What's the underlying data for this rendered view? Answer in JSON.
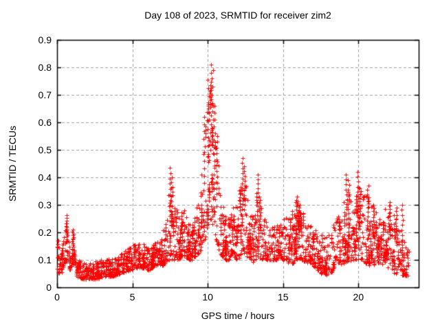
{
  "chart_data": {
    "type": "scatter",
    "title": "Day 108 of 2023, SRMTID for receiver zim2",
    "xlabel": "GPS time / hours",
    "ylabel": "SRMTID / TECUs",
    "xlim": [
      0,
      24
    ],
    "ylim": [
      0,
      0.9
    ],
    "xticks": [
      0,
      5,
      10,
      15,
      20
    ],
    "yticks": [
      0,
      0.1,
      0.2,
      0.3,
      0.4,
      0.5,
      0.6,
      0.7,
      0.8,
      0.9
    ],
    "grid": true,
    "grid_color": "#9e9e9e",
    "grid_dash": [
      4,
      3
    ],
    "border_color": "#000000",
    "marker": "plus",
    "marker_color": "#ff0000",
    "marker_size": 7,
    "x_data_start": 0.0,
    "x_data_end": 23.35,
    "n_epochs": 900,
    "seed": 2023108,
    "envelope": [
      {
        "x": 0.0,
        "lo": 0.05,
        "hi": 0.2
      },
      {
        "x": 0.3,
        "lo": 0.05,
        "hi": 0.13
      },
      {
        "x": 0.6,
        "lo": 0.1,
        "hi": 0.24
      },
      {
        "x": 0.85,
        "lo": 0.06,
        "hi": 0.14
      },
      {
        "x": 1.05,
        "lo": 0.09,
        "hi": 0.19
      },
      {
        "x": 1.3,
        "lo": 0.04,
        "hi": 0.11
      },
      {
        "x": 1.7,
        "lo": 0.03,
        "hi": 0.09
      },
      {
        "x": 2.2,
        "lo": 0.03,
        "hi": 0.09
      },
      {
        "x": 2.7,
        "lo": 0.03,
        "hi": 0.1
      },
      {
        "x": 3.2,
        "lo": 0.04,
        "hi": 0.1
      },
      {
        "x": 3.7,
        "lo": 0.04,
        "hi": 0.11
      },
      {
        "x": 4.2,
        "lo": 0.05,
        "hi": 0.12
      },
      {
        "x": 4.7,
        "lo": 0.06,
        "hi": 0.14
      },
      {
        "x": 5.2,
        "lo": 0.07,
        "hi": 0.16
      },
      {
        "x": 5.7,
        "lo": 0.07,
        "hi": 0.16
      },
      {
        "x": 6.1,
        "lo": 0.06,
        "hi": 0.14
      },
      {
        "x": 6.5,
        "lo": 0.08,
        "hi": 0.17
      },
      {
        "x": 7.0,
        "lo": 0.08,
        "hi": 0.2
      },
      {
        "x": 7.5,
        "lo": 0.1,
        "hi": 0.38
      },
      {
        "x": 7.8,
        "lo": 0.1,
        "hi": 0.3
      },
      {
        "x": 8.1,
        "lo": 0.1,
        "hi": 0.26
      },
      {
        "x": 8.4,
        "lo": 0.12,
        "hi": 0.29
      },
      {
        "x": 8.7,
        "lo": 0.1,
        "hi": 0.23
      },
      {
        "x": 9.0,
        "lo": 0.1,
        "hi": 0.25
      },
      {
        "x": 9.3,
        "lo": 0.12,
        "hi": 0.31
      },
      {
        "x": 9.6,
        "lo": 0.14,
        "hi": 0.45
      },
      {
        "x": 9.85,
        "lo": 0.18,
        "hi": 0.6
      },
      {
        "x": 10.1,
        "lo": 0.22,
        "hi": 0.72
      },
      {
        "x": 10.25,
        "lo": 0.25,
        "hi": 0.78
      },
      {
        "x": 10.45,
        "lo": 0.2,
        "hi": 0.62
      },
      {
        "x": 10.65,
        "lo": 0.15,
        "hi": 0.48
      },
      {
        "x": 10.85,
        "lo": 0.12,
        "hi": 0.34
      },
      {
        "x": 11.1,
        "lo": 0.1,
        "hi": 0.27
      },
      {
        "x": 11.4,
        "lo": 0.1,
        "hi": 0.25
      },
      {
        "x": 11.7,
        "lo": 0.11,
        "hi": 0.29
      },
      {
        "x": 12.0,
        "lo": 0.1,
        "hi": 0.31
      },
      {
        "x": 12.3,
        "lo": 0.13,
        "hi": 0.44
      },
      {
        "x": 12.5,
        "lo": 0.12,
        "hi": 0.4
      },
      {
        "x": 12.75,
        "lo": 0.09,
        "hi": 0.28
      },
      {
        "x": 13.0,
        "lo": 0.09,
        "hi": 0.26
      },
      {
        "x": 13.3,
        "lo": 0.11,
        "hi": 0.38
      },
      {
        "x": 13.6,
        "lo": 0.1,
        "hi": 0.28
      },
      {
        "x": 13.9,
        "lo": 0.1,
        "hi": 0.24
      },
      {
        "x": 14.3,
        "lo": 0.1,
        "hi": 0.22
      },
      {
        "x": 14.7,
        "lo": 0.1,
        "hi": 0.23
      },
      {
        "x": 15.1,
        "lo": 0.1,
        "hi": 0.25
      },
      {
        "x": 15.5,
        "lo": 0.08,
        "hi": 0.27
      },
      {
        "x": 15.9,
        "lo": 0.1,
        "hi": 0.32
      },
      {
        "x": 16.2,
        "lo": 0.1,
        "hi": 0.29
      },
      {
        "x": 16.6,
        "lo": 0.09,
        "hi": 0.24
      },
      {
        "x": 17.0,
        "lo": 0.08,
        "hi": 0.22
      },
      {
        "x": 17.5,
        "lo": 0.05,
        "hi": 0.19
      },
      {
        "x": 18.0,
        "lo": 0.04,
        "hi": 0.19
      },
      {
        "x": 18.4,
        "lo": 0.07,
        "hi": 0.24
      },
      {
        "x": 18.8,
        "lo": 0.08,
        "hi": 0.27
      },
      {
        "x": 19.2,
        "lo": 0.09,
        "hi": 0.37
      },
      {
        "x": 19.6,
        "lo": 0.1,
        "hi": 0.29
      },
      {
        "x": 19.95,
        "lo": 0.1,
        "hi": 0.38
      },
      {
        "x": 20.25,
        "lo": 0.1,
        "hi": 0.33
      },
      {
        "x": 20.6,
        "lo": 0.08,
        "hi": 0.34
      },
      {
        "x": 21.0,
        "lo": 0.08,
        "hi": 0.29
      },
      {
        "x": 21.4,
        "lo": 0.09,
        "hi": 0.27
      },
      {
        "x": 21.8,
        "lo": 0.08,
        "hi": 0.29
      },
      {
        "x": 22.1,
        "lo": 0.06,
        "hi": 0.3
      },
      {
        "x": 22.45,
        "lo": 0.05,
        "hi": 0.27
      },
      {
        "x": 22.75,
        "lo": 0.05,
        "hi": 0.21
      },
      {
        "x": 23.05,
        "lo": 0.04,
        "hi": 0.17
      },
      {
        "x": 23.35,
        "lo": 0.04,
        "hi": 0.13
      }
    ],
    "peaks": [
      {
        "x": 0.62,
        "y": 0.263
      },
      {
        "x": 1.05,
        "y": 0.21
      },
      {
        "x": 7.5,
        "y": 0.435
      },
      {
        "x": 7.62,
        "y": 0.4
      },
      {
        "x": 9.75,
        "y": 0.62
      },
      {
        "x": 10.05,
        "y": 0.755
      },
      {
        "x": 10.2,
        "y": 0.81
      },
      {
        "x": 10.3,
        "y": 0.79
      },
      {
        "x": 10.45,
        "y": 0.66
      },
      {
        "x": 10.6,
        "y": 0.55
      },
      {
        "x": 12.3,
        "y": 0.47
      },
      {
        "x": 12.45,
        "y": 0.44
      },
      {
        "x": 13.3,
        "y": 0.41
      },
      {
        "x": 13.45,
        "y": 0.33
      },
      {
        "x": 15.9,
        "y": 0.33
      },
      {
        "x": 16.05,
        "y": 0.3
      },
      {
        "x": 19.2,
        "y": 0.41
      },
      {
        "x": 19.35,
        "y": 0.39
      },
      {
        "x": 19.95,
        "y": 0.42
      },
      {
        "x": 20.1,
        "y": 0.35
      },
      {
        "x": 20.6,
        "y": 0.37
      },
      {
        "x": 21.0,
        "y": 0.3
      },
      {
        "x": 22.05,
        "y": 0.31
      },
      {
        "x": 22.5,
        "y": 0.29
      },
      {
        "x": 22.9,
        "y": 0.3
      }
    ]
  }
}
